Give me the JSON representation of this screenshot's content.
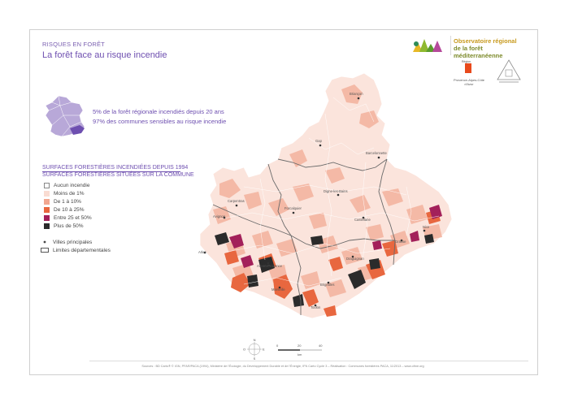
{
  "header": {
    "kicker": "RISQUES EN FORÊT",
    "title": "La forêt face au risque incendie"
  },
  "logos": {
    "observatoire_line1": "Observatoire régional",
    "observatoire_line2": "de la forêt méditerranéenne",
    "region_label": "Provence-Alpes-Côte d'Azur",
    "region_word": "Région"
  },
  "stats": {
    "line1": "5% de la forêt régionale incendiés depuis 20 ans",
    "line2": "97% des communes sensibles au risque incendie"
  },
  "legend": {
    "title1": "SURFACES FORESTIÈRES INCENDIÉES DEPUIS 1994",
    "title2": "SURFACES FORESTIÈRES SITUÉES SUR LA COMMUNE",
    "classes": [
      {
        "label": "Aucun incendie",
        "color": "#ffffff"
      },
      {
        "label": "Moins de 1%",
        "color": "#f9dcd2"
      },
      {
        "label": "De 1 à 10%",
        "color": "#f2a790"
      },
      {
        "label": "De 10 à 25%",
        "color": "#e8673f"
      },
      {
        "label": "Entre 25 et 50%",
        "color": "#a3205a"
      },
      {
        "label": "Plus de 50%",
        "color": "#2b2b2b"
      }
    ],
    "cities_label": "Villes principales",
    "limits_label": "Limites départementales"
  },
  "cities": [
    "Briançon",
    "Gap",
    "Barcelonnette",
    "Digne-les-Bains",
    "Carpentras",
    "Forcalquier",
    "Castellane",
    "Avignon",
    "Grasse",
    "Nice",
    "Arles",
    "Aix-en-Provence",
    "Draguignan",
    "Marseille",
    "Brignoles",
    "Toulon"
  ],
  "compass": {
    "n": "N",
    "e": "E",
    "s": "S",
    "o": "O"
  },
  "scale": {
    "ticks": [
      "0",
      "20",
      "40"
    ],
    "unit": "km"
  },
  "footer": {
    "source": "Sources : BD Carto® © IGN, PFAR/PACA (1994), Ministère de l'Écologie, du Développement Durable et de l'Énergie, IFN Carto Cycle 3 – Réalisation : Communes forestières PACA, 11/2013 – www.ofme.org"
  }
}
